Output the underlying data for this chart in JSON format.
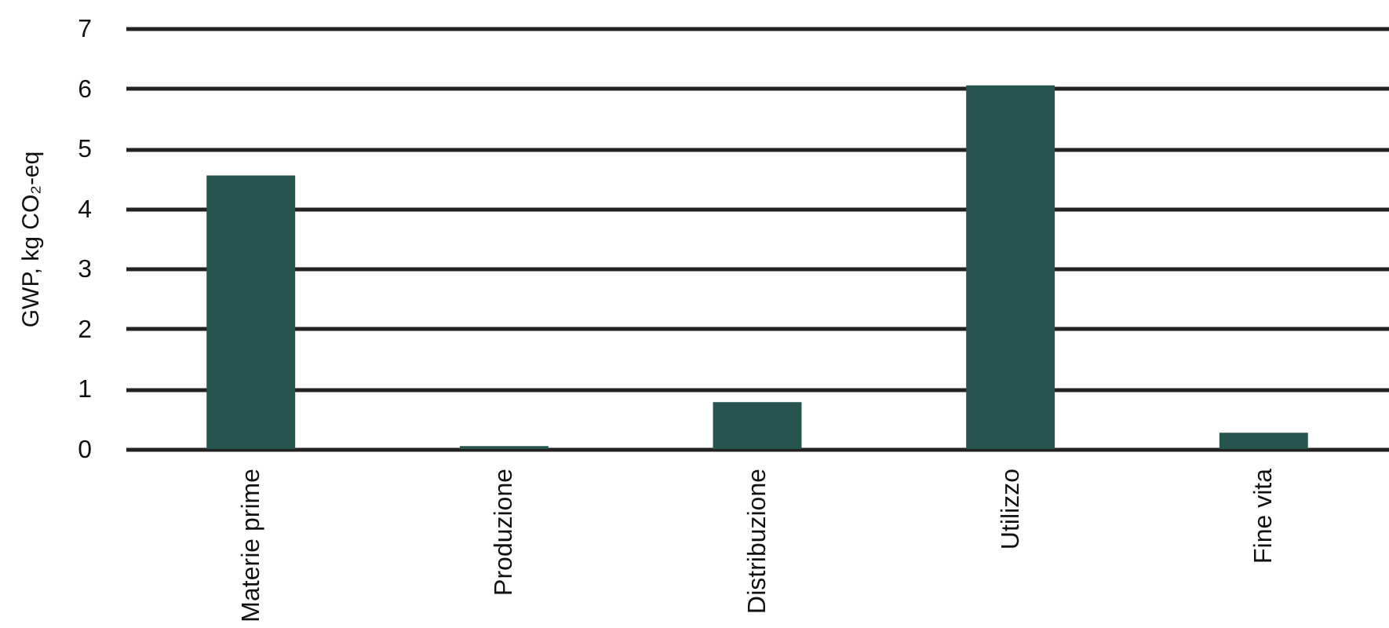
{
  "chart_data": {
    "type": "bar",
    "ylabel": "GWP, kg CO₂-eq",
    "categories": [
      "Materie prime",
      "Produzione",
      "Distribuzione",
      "Utilizzo",
      "Fine vita"
    ],
    "values": [
      4.55,
      0.05,
      0.78,
      6.05,
      0.27
    ],
    "color": "#285450",
    "ylim": [
      0,
      7
    ],
    "yticks": [
      0,
      1,
      2,
      3,
      4,
      5,
      6,
      7
    ],
    "grid": "y"
  }
}
